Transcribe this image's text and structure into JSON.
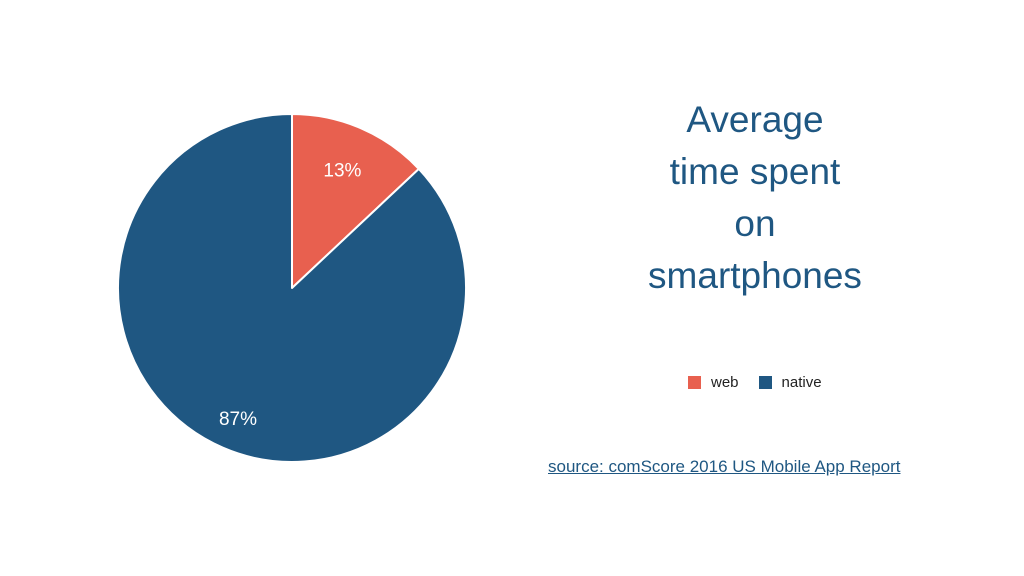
{
  "title_lines": [
    "Average",
    "time spent",
    "on",
    "smartphones"
  ],
  "source": {
    "label": "source: comScore 2016 US Mobile App Report"
  },
  "legend": {
    "items": [
      {
        "label": "web",
        "color": "#e8604f"
      },
      {
        "label": "native",
        "color": "#1f5782"
      }
    ]
  },
  "chart_data": {
    "type": "pie",
    "title": "Average time spent on smartphones",
    "categories": [
      "web",
      "native"
    ],
    "values": [
      13,
      87
    ],
    "labels": [
      "13%",
      "87%"
    ],
    "colors": [
      "#e8604f",
      "#1f5782"
    ],
    "legend_placement": "bottom-right"
  }
}
